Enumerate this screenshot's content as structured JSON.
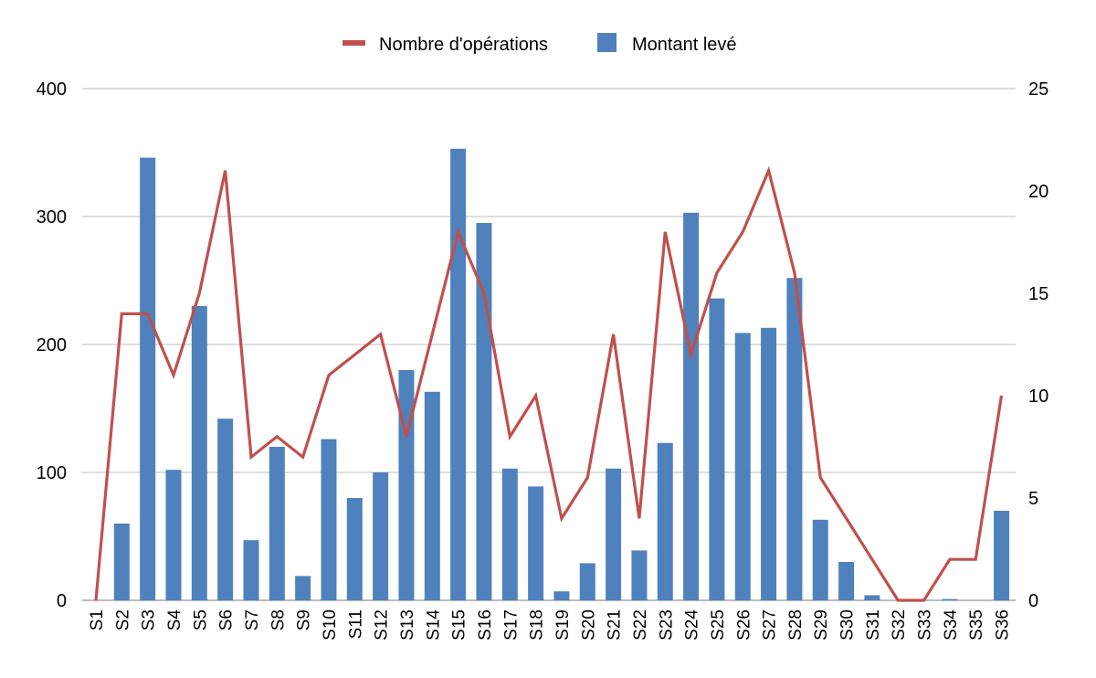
{
  "chart_data": {
    "type": "bar",
    "title": "",
    "categories": [
      "S1",
      "S2",
      "S3",
      "S4",
      "S5",
      "S6",
      "S7",
      "S8",
      "S9",
      "S10",
      "S11",
      "S12",
      "S13",
      "S14",
      "S15",
      "S16",
      "S17",
      "S18",
      "S19",
      "S20",
      "S21",
      "S22",
      "S23",
      "S24",
      "S25",
      "S26",
      "S27",
      "S28",
      "S29",
      "S30",
      "S31",
      "S32",
      "S33",
      "S34",
      "S35",
      "S36"
    ],
    "series": [
      {
        "name": "Montant levé",
        "type": "bar",
        "axis": "left",
        "color": "#4f81bd",
        "values": [
          0,
          60,
          346,
          102,
          230,
          142,
          47,
          120,
          19,
          126,
          80,
          100,
          180,
          163,
          353,
          295,
          103,
          89,
          7,
          29,
          103,
          39,
          123,
          303,
          236,
          209,
          213,
          252,
          63,
          30,
          4,
          0,
          0,
          1,
          0,
          70
        ]
      },
      {
        "name": "Nombre d'opérations",
        "type": "line",
        "axis": "right",
        "color": "#c0504d",
        "values": [
          0,
          14,
          14,
          11,
          15,
          21,
          7,
          8,
          7,
          11,
          12,
          13,
          8,
          13,
          18,
          15,
          8,
          10,
          4,
          6,
          13,
          4,
          18,
          12,
          16,
          18,
          21,
          16,
          6,
          4,
          2,
          0,
          0,
          2,
          2,
          10
        ]
      }
    ],
    "y_left": {
      "ticks": [
        "0",
        "100",
        "200",
        "300",
        "400"
      ],
      "ylim": [
        0,
        400
      ]
    },
    "y_right": {
      "ticks": [
        "0",
        "5",
        "10",
        "15",
        "20",
        "25"
      ],
      "ylim": [
        0,
        25
      ]
    },
    "grid": true,
    "legend": {
      "position": "top",
      "entries": [
        {
          "label": "Nombre d'opérations",
          "color": "#c0504d",
          "marker": "line"
        },
        {
          "label": "Montant levé",
          "color": "#4f81bd",
          "marker": "square"
        }
      ]
    }
  }
}
